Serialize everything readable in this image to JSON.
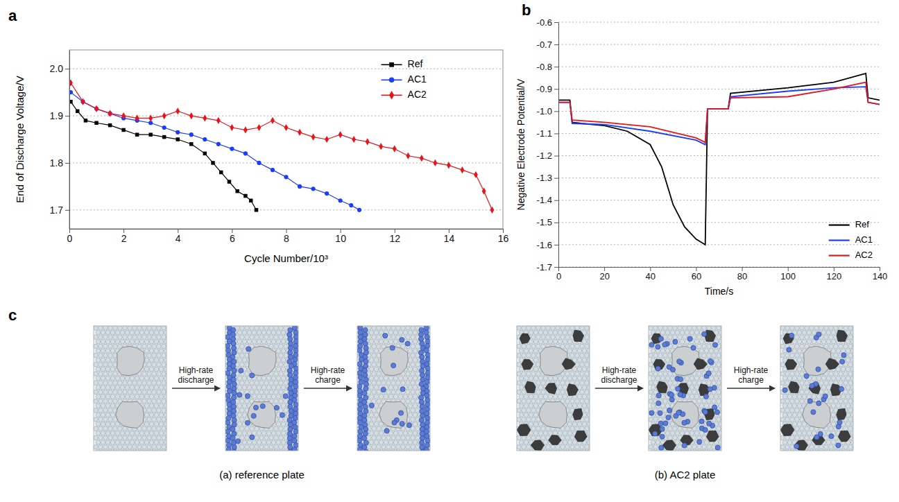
{
  "chart_data": [
    {
      "type": "line",
      "panel_label": "a",
      "x_label": "Cycle Number/10³",
      "y_label": "End of Discharge Voltage/V",
      "xlim": [
        0,
        16
      ],
      "xticks": [
        0,
        2,
        4,
        6,
        8,
        10,
        12,
        14,
        16
      ],
      "ylim": [
        1.66,
        2.04
      ],
      "yticks": [
        1.7,
        1.8,
        1.9,
        {
          "value": 2,
          "label": "2.0"
        }
      ],
      "grid": true,
      "legend": "upper right",
      "series": [
        {
          "name": "Ref",
          "color": "#000000",
          "marker": "square",
          "line_style": "solid",
          "x": [
            0.05,
            0.3,
            0.6,
            1,
            1.5,
            2,
            2.5,
            3,
            3.5,
            4,
            4.5,
            5,
            5.3,
            5.6,
            5.9,
            6.2,
            6.5,
            6.7,
            6.9
          ],
          "values": [
            1.93,
            1.91,
            1.89,
            1.885,
            1.88,
            1.87,
            1.86,
            1.86,
            1.855,
            1.85,
            1.84,
            1.82,
            1.8,
            1.78,
            1.76,
            1.74,
            1.73,
            1.72,
            1.7
          ]
        },
        {
          "name": "AC1",
          "color": "#1a3cff",
          "marker": "circle",
          "line_style": "solid",
          "x": [
            0.05,
            0.5,
            1,
            1.5,
            2,
            2.5,
            3,
            3.5,
            4,
            4.5,
            5,
            5.5,
            6,
            6.5,
            7,
            7.5,
            8,
            8.5,
            9,
            9.5,
            10,
            10.4,
            10.7
          ],
          "values": [
            1.95,
            1.93,
            1.915,
            1.905,
            1.895,
            1.89,
            1.885,
            1.875,
            1.865,
            1.86,
            1.85,
            1.84,
            1.83,
            1.82,
            1.8,
            1.785,
            1.77,
            1.75,
            1.745,
            1.735,
            1.72,
            1.71,
            1.7
          ]
        },
        {
          "name": "AC2",
          "color": "#e8141c",
          "marker": "diamond",
          "line_style": "solid",
          "x": [
            0.05,
            0.5,
            1,
            1.5,
            2,
            2.5,
            3,
            3.5,
            4,
            4.5,
            5,
            5.5,
            6,
            6.5,
            7,
            7.5,
            8,
            8.5,
            9,
            9.5,
            10,
            10.5,
            11,
            11.5,
            12,
            12.5,
            13,
            13.5,
            14,
            14.5,
            15,
            15.3,
            15.6
          ],
          "values": [
            1.97,
            1.93,
            1.915,
            1.905,
            1.9,
            1.895,
            1.895,
            1.9,
            1.91,
            1.9,
            1.895,
            1.89,
            1.875,
            1.87,
            1.875,
            1.89,
            1.875,
            1.865,
            1.855,
            1.85,
            1.86,
            1.85,
            1.845,
            1.835,
            1.83,
            1.815,
            1.81,
            1.8,
            1.795,
            1.785,
            1.775,
            1.74,
            1.7
          ]
        }
      ]
    },
    {
      "type": "line",
      "panel_label": "b",
      "x_label": "Time/s",
      "y_label": "Negative Electrode Potential/V",
      "xlim": [
        0,
        140
      ],
      "xticks": [
        0,
        20,
        40,
        60,
        80,
        100,
        120,
        140
      ],
      "ylim": [
        -1.7,
        -0.6
      ],
      "yticks": [
        -1.7,
        -1.6,
        -1.5,
        -1.4,
        -1.3,
        -1.2,
        -1.1,
        {
          "value": -1,
          "label": "-1.0"
        },
        -0.9,
        -0.8,
        -0.7,
        -0.6
      ],
      "grid": true,
      "legend": "lower right",
      "series": [
        {
          "name": "Ref",
          "color": "#000000",
          "line_style": "solid",
          "x": [
            0,
            5,
            6,
            10,
            20,
            30,
            40,
            45,
            50,
            55,
            60,
            64,
            65,
            74,
            75,
            100,
            120,
            134,
            135,
            140
          ],
          "values": [
            -0.95,
            -0.95,
            -1.05,
            -1.055,
            -1.065,
            -1.09,
            -1.15,
            -1.25,
            -1.42,
            -1.52,
            -1.575,
            -1.6,
            -0.99,
            -0.99,
            -0.92,
            -0.895,
            -0.87,
            -0.83,
            -0.94,
            -0.95
          ]
        },
        {
          "name": "AC1",
          "color": "#1a3cff",
          "line_style": "solid",
          "x": [
            0,
            5,
            6,
            20,
            40,
            60,
            64,
            65,
            74,
            75,
            100,
            120,
            134,
            135,
            140
          ],
          "values": [
            -0.96,
            -0.96,
            -1.055,
            -1.06,
            -1.09,
            -1.13,
            -1.15,
            -0.99,
            -0.99,
            -0.935,
            -0.91,
            -0.895,
            -0.89,
            -0.96,
            -0.97
          ]
        },
        {
          "name": "AC2",
          "color": "#e8141c",
          "line_style": "solid",
          "x": [
            0,
            5,
            6,
            20,
            40,
            60,
            64,
            65,
            74,
            75,
            100,
            120,
            134,
            135,
            140
          ],
          "values": [
            -0.96,
            -0.96,
            -1.04,
            -1.05,
            -1.07,
            -1.12,
            -1.14,
            -0.99,
            -0.99,
            -0.94,
            -0.935,
            -0.9,
            -0.87,
            -0.96,
            -0.97
          ]
        }
      ]
    }
  ],
  "diagram": {
    "panel_label": "c",
    "plates": [
      {
        "caption": "(a) reference plate",
        "steps": [
          "High-rate discharge",
          "High-rate charge"
        ]
      },
      {
        "caption": "(b) AC2 plate",
        "steps": [
          "High-rate discharge",
          "High-rate charge"
        ]
      }
    ]
  }
}
